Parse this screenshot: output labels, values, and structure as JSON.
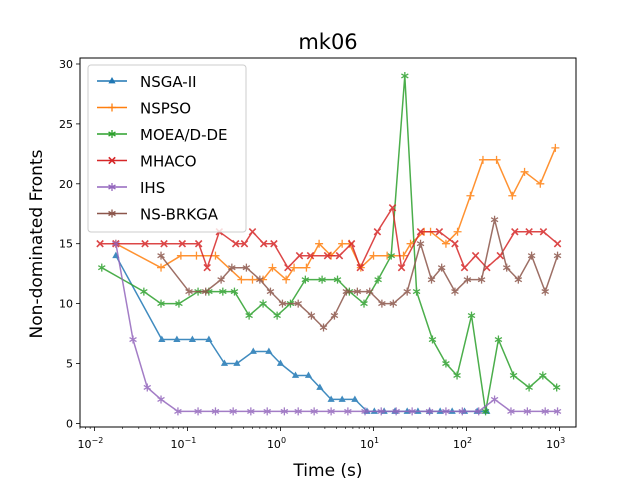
{
  "chart_data": {
    "type": "line",
    "title": "mk06",
    "xlabel": "Time (s)",
    "ylabel": "Non-dominated Fronts",
    "xscale": "log",
    "xlim": [
      0.007,
      1500
    ],
    "ylim": [
      -0.3,
      30.5
    ],
    "x_ticks": [
      {
        "value": 0.01,
        "base": "10",
        "exp": "−2"
      },
      {
        "value": 0.1,
        "base": "10",
        "exp": "−1"
      },
      {
        "value": 1,
        "base": "10",
        "exp": "0"
      },
      {
        "value": 10,
        "base": "10",
        "exp": "1"
      },
      {
        "value": 100,
        "base": "10",
        "exp": "2"
      },
      {
        "value": 1000,
        "base": "10",
        "exp": "3"
      }
    ],
    "y_ticks": [
      0,
      5,
      10,
      15,
      20,
      25,
      30
    ],
    "grid": false,
    "legend_position": "upper-left",
    "series": [
      {
        "name": "NSGA-II",
        "color": "#1f77b4",
        "marker": "triangle",
        "x": [
          0.017,
          0.053,
          0.077,
          0.113,
          0.17,
          0.25,
          0.34,
          0.51,
          0.75,
          1.0,
          1.45,
          2.0,
          2.65,
          3.5,
          4.6,
          6.3,
          8.5,
          10.2,
          13,
          17,
          23,
          30,
          40,
          52,
          70,
          95,
          130,
          165
        ],
        "y": [
          14,
          7,
          7,
          7,
          7,
          5,
          5,
          6,
          6,
          5,
          4,
          4,
          3,
          2,
          2,
          2,
          1,
          1,
          1,
          1,
          1,
          1,
          1,
          1,
          1,
          1,
          1,
          1
        ]
      },
      {
        "name": "NSPSO",
        "color": "#ff7f0e",
        "marker": "plus",
        "x": [
          0.017,
          0.052,
          0.085,
          0.125,
          0.2,
          0.38,
          0.5,
          0.65,
          0.82,
          1.15,
          1.4,
          1.9,
          2.6,
          3.5,
          4.6,
          5.5,
          7.3,
          10,
          14,
          21,
          25,
          35,
          41,
          60,
          80,
          110,
          150,
          210,
          310,
          420,
          620,
          900
        ],
        "y": [
          15,
          13,
          14,
          14,
          14,
          12,
          12,
          12,
          13,
          12,
          13,
          13,
          15,
          14,
          15,
          15,
          13,
          14,
          14,
          14,
          15,
          16,
          16,
          15,
          16,
          19,
          22,
          22,
          19,
          21,
          20,
          23
        ]
      },
      {
        "name": "MOEA/D-DE",
        "color": "#2ca02c",
        "marker": "star",
        "x": [
          0.012,
          0.034,
          0.052,
          0.081,
          0.13,
          0.17,
          0.24,
          0.32,
          0.46,
          0.65,
          0.92,
          1.28,
          1.85,
          2.8,
          4.1,
          5.5,
          7.9,
          11.2,
          15.5,
          21.7,
          29,
          43,
          60,
          79,
          113,
          160,
          220,
          320,
          470,
          660,
          930
        ],
        "y": [
          13,
          11,
          10,
          10,
          11,
          11,
          11,
          11,
          9,
          10,
          9,
          10,
          12,
          12,
          12,
          11,
          10,
          12,
          14,
          29,
          11,
          7,
          5,
          4,
          9,
          1,
          7,
          4,
          3,
          4,
          3
        ]
      },
      {
        "name": "MHACO",
        "color": "#d62728",
        "marker": "x",
        "x": [
          0.0115,
          0.017,
          0.035,
          0.056,
          0.088,
          0.132,
          0.163,
          0.22,
          0.33,
          0.41,
          0.5,
          0.66,
          0.85,
          1.2,
          1.6,
          2.1,
          3.2,
          4.3,
          5.8,
          7.2,
          11,
          16,
          20,
          32,
          51,
          75,
          95,
          125,
          165,
          230,
          330,
          470,
          670,
          950
        ],
        "y": [
          15,
          15,
          15,
          15,
          15,
          15,
          13,
          16,
          15,
          15,
          16,
          15,
          15,
          13,
          14,
          14,
          14,
          14,
          15,
          13,
          16,
          18,
          13,
          16,
          16,
          15,
          13,
          14,
          13,
          14,
          16,
          16,
          16,
          15
        ]
      },
      {
        "name": "IHS",
        "color": "#9467bd",
        "marker": "star",
        "x": [
          0.017,
          0.026,
          0.037,
          0.052,
          0.079,
          0.13,
          0.2,
          0.31,
          0.48,
          0.72,
          1.1,
          1.55,
          2.3,
          3.5,
          5.3,
          8.1,
          12.1,
          17.5,
          26,
          40,
          60,
          90,
          135,
          200,
          300,
          450,
          700,
          950
        ],
        "y": [
          15,
          7,
          3,
          2,
          1,
          1,
          1,
          1,
          1,
          1,
          1,
          1,
          1,
          1,
          1,
          1,
          1,
          1,
          1,
          1,
          1,
          1,
          1,
          2,
          1,
          1,
          1,
          1
        ]
      },
      {
        "name": "NS-BRKGA",
        "color": "#8c564b",
        "marker": "star",
        "x": [
          0.052,
          0.104,
          0.157,
          0.23,
          0.3,
          0.43,
          0.6,
          0.78,
          1.05,
          1.55,
          2.15,
          2.9,
          3.8,
          5.1,
          6.7,
          9.1,
          12.3,
          16.3,
          23,
          32,
          42,
          54,
          75,
          102,
          145,
          200,
          270,
          360,
          500,
          700,
          950
        ],
        "y": [
          14,
          11,
          11,
          12,
          13,
          13,
          12,
          11,
          10,
          10,
          9,
          8,
          9,
          11,
          11,
          11,
          10,
          10,
          11,
          15,
          12,
          13,
          11,
          12,
          12,
          17,
          13,
          12,
          14,
          11,
          14
        ]
      }
    ]
  }
}
